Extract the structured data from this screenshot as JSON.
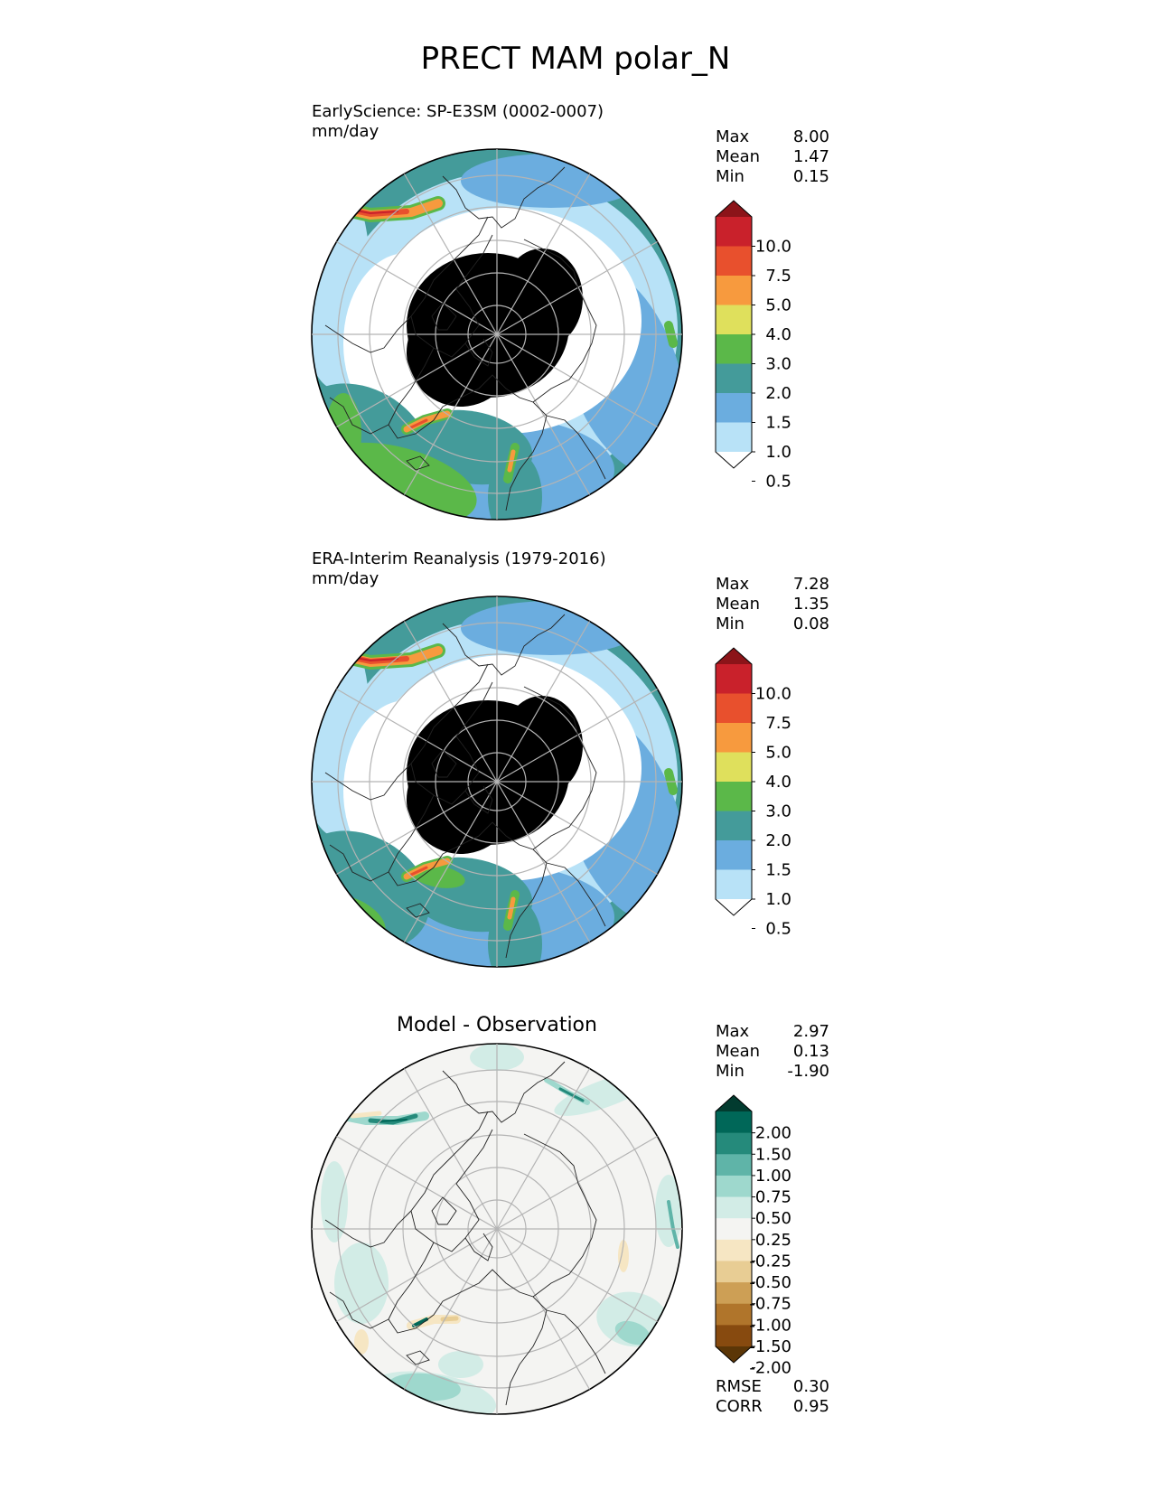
{
  "title": "PRECT MAM polar_N",
  "panels": [
    {
      "title": "EarlyScience: SP-E3SM (0002-0007)",
      "units": "mm/day",
      "stats": [
        {
          "label": "Max",
          "value": "8.00"
        },
        {
          "label": "Mean",
          "value": "1.47"
        },
        {
          "label": "Min",
          "value": "0.15"
        }
      ]
    },
    {
      "title": "ERA-Interim Reanalysis (1979-2016)",
      "units": "mm/day",
      "stats": [
        {
          "label": "Max",
          "value": "7.28"
        },
        {
          "label": "Mean",
          "value": "1.35"
        },
        {
          "label": "Min",
          "value": "0.08"
        }
      ]
    },
    {
      "title": "Model - Observation",
      "stats": [
        {
          "label": "Max",
          "value": "2.97"
        },
        {
          "label": "Mean",
          "value": "0.13"
        },
        {
          "label": "Min",
          "value": "-1.90"
        }
      ],
      "metrics": [
        {
          "label": "RMSE",
          "value": "0.30"
        },
        {
          "label": "CORR",
          "value": "0.95"
        }
      ]
    }
  ],
  "chart_data": [
    {
      "type": "heatmap",
      "projection": "north-polar-stereographic",
      "title": "EarlyScience: SP-E3SM (0002-0007)",
      "units": "mm/day",
      "colorbar": {
        "ticks": [
          "10.0",
          "7.5",
          "5.0",
          "4.0",
          "3.0",
          "2.0",
          "1.5",
          "1.0",
          "0.5"
        ],
        "colors": [
          "#8c1419",
          "#c9212b",
          "#e8502d",
          "#f79a3e",
          "#dfe05c",
          "#5bb849",
          "#449b9a",
          "#6baddf",
          "#b8e2f7",
          "#ffffff"
        ],
        "extend": "both"
      },
      "stats": {
        "max": 8.0,
        "mean": 1.47,
        "min": 0.15
      }
    },
    {
      "type": "heatmap",
      "projection": "north-polar-stereographic",
      "title": "ERA-Interim Reanalysis (1979-2016)",
      "units": "mm/day",
      "colorbar": {
        "ticks": [
          "10.0",
          "7.5",
          "5.0",
          "4.0",
          "3.0",
          "2.0",
          "1.5",
          "1.0",
          "0.5"
        ],
        "colors": [
          "#8c1419",
          "#c9212b",
          "#e8502d",
          "#f79a3e",
          "#dfe05c",
          "#5bb849",
          "#449b9a",
          "#6baddf",
          "#b8e2f7",
          "#ffffff"
        ],
        "extend": "both"
      },
      "stats": {
        "max": 7.28,
        "mean": 1.35,
        "min": 0.08
      }
    },
    {
      "type": "heatmap",
      "projection": "north-polar-stereographic",
      "title": "Model - Observation",
      "colorbar": {
        "ticks": [
          "2.00",
          "1.50",
          "1.00",
          "0.75",
          "0.50",
          "0.25",
          "-0.25",
          "-0.50",
          "-0.75",
          "-1.00",
          "-1.50",
          "-2.00"
        ],
        "colors": [
          "#023b2f",
          "#006758",
          "#258a7b",
          "#5fb4a8",
          "#9ed8cd",
          "#d2ece6",
          "#f4f4f2",
          "#f6e6c3",
          "#e8cd94",
          "#cd9f55",
          "#b0752b",
          "#874a0f",
          "#5b3607"
        ],
        "extend": "both"
      },
      "stats": {
        "max": 2.97,
        "mean": 0.13,
        "min": -1.9
      },
      "rmse": 0.3,
      "corr": 0.95
    }
  ]
}
